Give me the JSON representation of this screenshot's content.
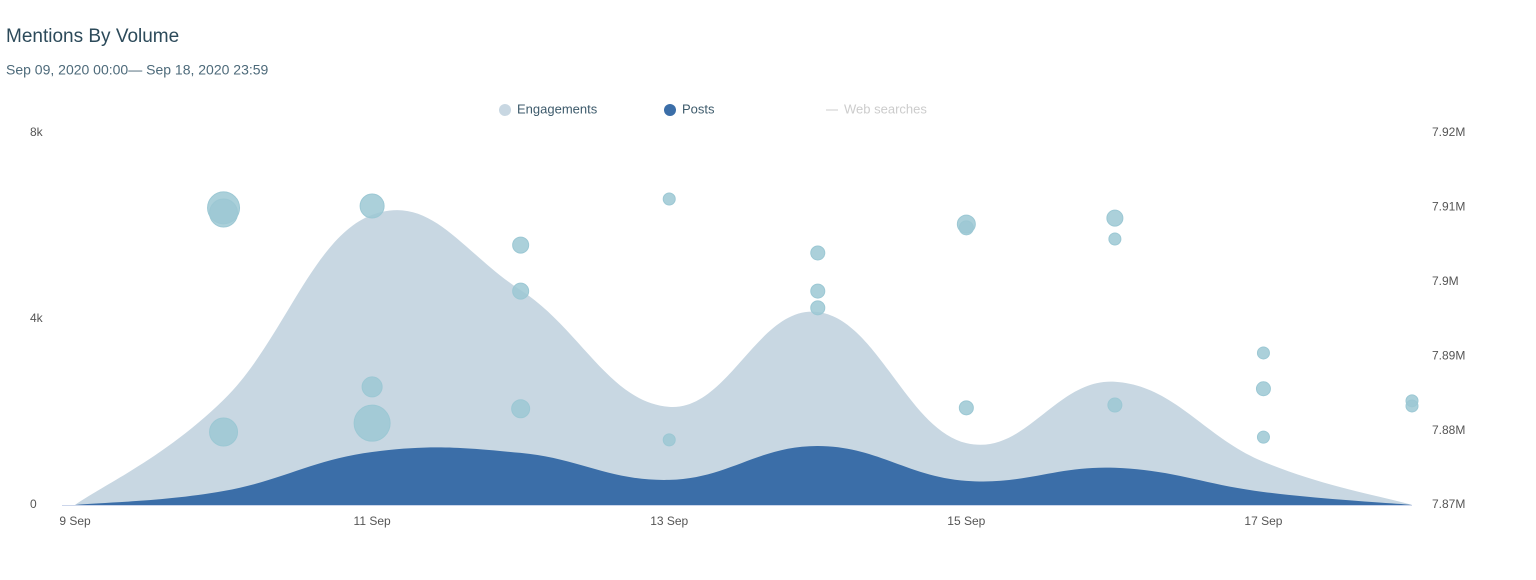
{
  "chart_data": {
    "type": "area",
    "title": "Mentions By Volume",
    "subtitle": "Sep 09, 2020 00:00— Sep 18, 2020 23:59",
    "categories": [
      "9 Sep",
      null,
      "11 Sep",
      null,
      "13 Sep",
      null,
      "15 Sep",
      null,
      "17 Sep",
      null
    ],
    "series": [
      {
        "name": "Engagements",
        "color": "#c8d7e2",
        "values": [
          0,
          2260,
          6240,
          4620,
          2110,
          4150,
          1330,
          2650,
          930,
          0
        ]
      },
      {
        "name": "Posts",
        "color": "#3b6ea8",
        "values": [
          0,
          300,
          1140,
          1120,
          540,
          1270,
          520,
          800,
          280,
          0
        ]
      },
      {
        "name": "Web searches",
        "color": "#dddddd",
        "hidden": true,
        "axis": "y2"
      }
    ],
    "bubbles": {
      "color": "#9cc8d4",
      "values": [
        [],
        [
          6390,
          6280,
          1570
        ],
        [
          6430,
          2540,
          1760
        ],
        [
          5590,
          4600,
          2070
        ],
        [
          6580,
          1400
        ],
        [
          5420,
          4600,
          4240
        ],
        [
          6040,
          5960,
          2090
        ],
        [
          6170,
          5720,
          2150
        ],
        [
          3270,
          2500,
          1460
        ],
        [
          2240,
          2130
        ]
      ],
      "sizes": [
        [],
        [
          16,
          14,
          14
        ],
        [
          12,
          10,
          18
        ],
        [
          8,
          8,
          9
        ],
        [
          6,
          6
        ],
        [
          7,
          7,
          7
        ],
        [
          9,
          7,
          7
        ],
        [
          8,
          6,
          7
        ],
        [
          6,
          7,
          6
        ],
        [
          6,
          6
        ]
      ]
    },
    "ylim": [
      0,
      8000
    ],
    "yticks": [
      0,
      {
        "value": 4000,
        "label": "4k"
      },
      {
        "value": 8000,
        "label": "8k"
      }
    ],
    "y2lim": [
      7870000,
      7920000
    ],
    "y2ticks": [
      {
        "value": 7870000,
        "label": "7.87M"
      },
      {
        "value": 7880000,
        "label": "7.88M"
      },
      {
        "value": 7890000,
        "label": "7.89M"
      },
      {
        "value": 7900000,
        "label": "7.9M"
      },
      {
        "value": 7910000,
        "label": "7.91M"
      },
      {
        "value": 7920000,
        "label": "7.92M"
      }
    ],
    "legend": "top"
  }
}
